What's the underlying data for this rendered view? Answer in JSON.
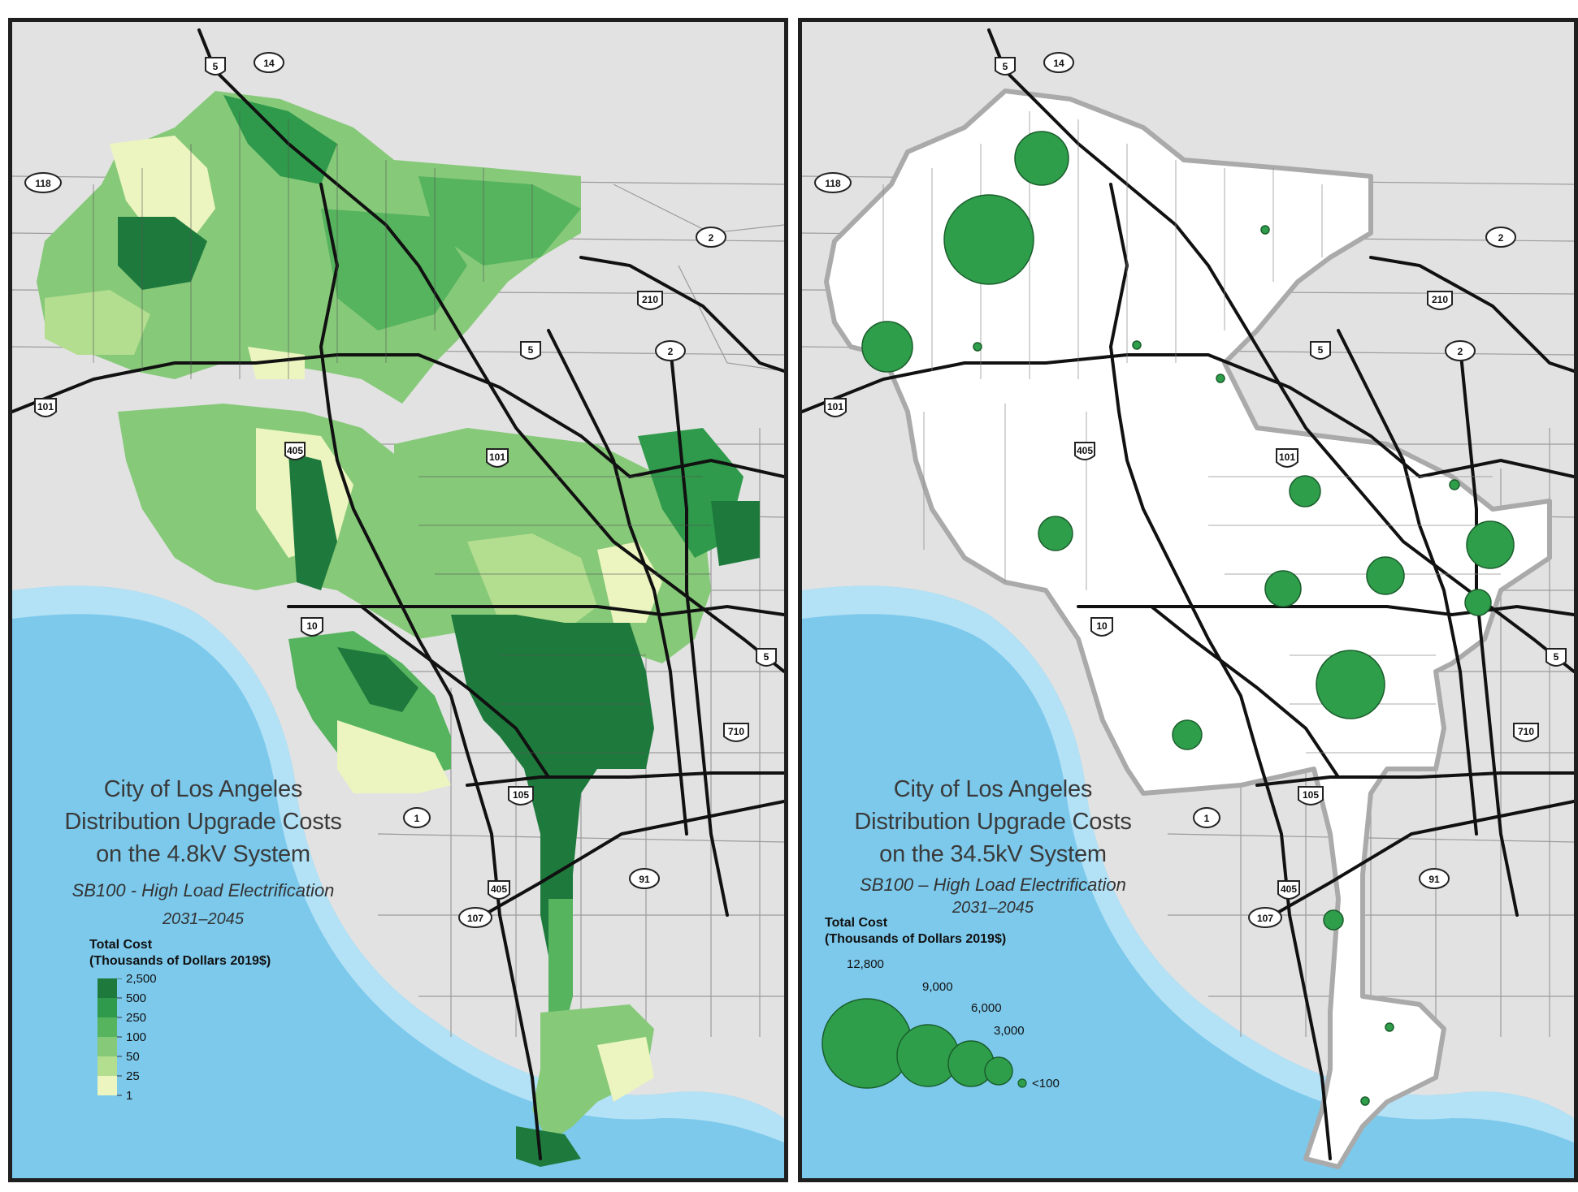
{
  "maps": [
    {
      "title_lines": [
        "City of Los Angeles",
        "Distribution Upgrade Costs",
        "on the 4.8kV System"
      ],
      "subtitle": "SB100 - High Load Electrification",
      "years": "2031–2045",
      "legend": {
        "title_lines": [
          "Total Cost",
          "(Thousands of Dollars 2019$)"
        ],
        "type": "choropleth",
        "breaks": [
          "2,500",
          "500",
          "250",
          "100",
          "50",
          "25",
          "1"
        ],
        "colors": [
          "#1e7a3c",
          "#2f9a4b",
          "#56b35e",
          "#86c979",
          "#b3dd8f",
          "#ecf5bf"
        ]
      }
    },
    {
      "title_lines": [
        "City of Los Angeles",
        "Distribution Upgrade Costs",
        "on the 34.5kV System"
      ],
      "subtitle": "SB100 – High Load Electrification",
      "years": "2031–2045",
      "legend": {
        "title_lines": [
          "Total Cost",
          "(Thousands of Dollars 2019$)"
        ],
        "type": "proportional-symbol",
        "symbol_values": [
          "12,800",
          "9,000",
          "6,000",
          "3,000",
          "<100"
        ],
        "symbol_color": "#2e9e4a"
      }
    }
  ],
  "highway_shields": [
    "5",
    "14",
    "118",
    "2",
    "210",
    "5",
    "2",
    "101",
    "405",
    "101",
    "10",
    "5",
    "710",
    "105",
    "1",
    "405",
    "91",
    "107"
  ],
  "colors": {
    "ocean_deep": "#7cc9ec",
    "ocean_shallow": "#b3e1f5",
    "land": "#e2e2e2",
    "city_bg_right": "#ffffff",
    "road_major": "#111111",
    "road_minor": "#8a8a8a",
    "panel_border": "#1f1f1f"
  }
}
